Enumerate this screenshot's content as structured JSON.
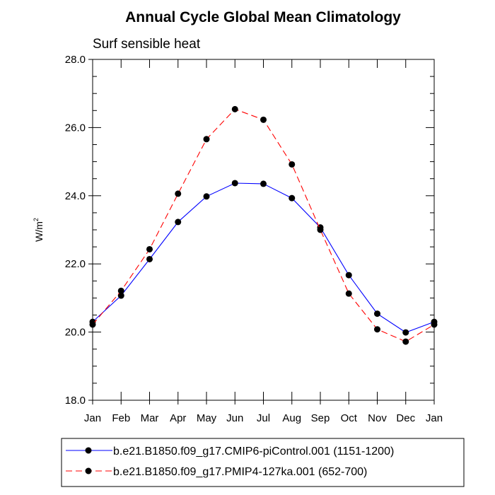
{
  "chart_data": {
    "type": "line",
    "title": "Annual Cycle Global Mean Climatology",
    "subtitle": "Surf sensible heat",
    "xlabel": "",
    "ylabel": {
      "base": "W/m",
      "sup": "2"
    },
    "ylim": [
      18.0,
      28.0
    ],
    "yticks": [
      18.0,
      20.0,
      22.0,
      24.0,
      26.0,
      28.0
    ],
    "ytick_labels": [
      "18.0",
      "20.0",
      "22.0",
      "24.0",
      "26.0",
      "28.0"
    ],
    "categories": [
      "Jan",
      "Feb",
      "Mar",
      "Apr",
      "May",
      "Jun",
      "Jul",
      "Aug",
      "Sep",
      "Oct",
      "Nov",
      "Dec",
      "Jan"
    ],
    "grid": false,
    "legend_position": "bottom",
    "series": [
      {
        "name": "b.e21.B1850.f09_g17.CMIP6-piControl.001 (1151-1200)",
        "color": "#0000ff",
        "dash": "solid",
        "values": [
          20.3,
          21.07,
          22.14,
          23.23,
          23.98,
          24.37,
          24.35,
          23.93,
          23.07,
          21.67,
          20.54,
          19.99,
          20.3
        ]
      },
      {
        "name": "b.e21.B1850.f09_g17.PMIP4-127ka.001 (652-700)",
        "color": "#ff0000",
        "dash": "dashed",
        "values": [
          20.22,
          21.21,
          22.43,
          24.06,
          25.66,
          26.54,
          26.23,
          24.92,
          23.0,
          21.13,
          20.08,
          19.72,
          20.22
        ]
      }
    ]
  }
}
